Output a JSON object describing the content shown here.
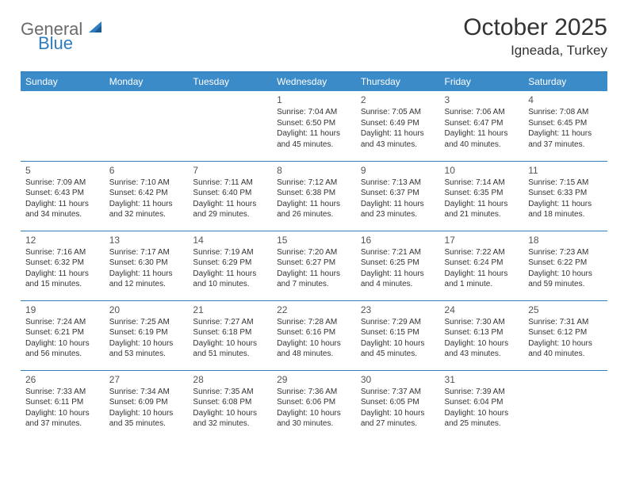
{
  "brand": {
    "name1": "General",
    "name2": "Blue"
  },
  "title": "October 2025",
  "location": "Igneada, Turkey",
  "colors": {
    "header_bg": "#3b8bc9",
    "header_text": "#ffffff",
    "rule": "#2f7bbf",
    "text": "#333333",
    "logo_gray": "#6b6b6b",
    "logo_blue": "#2f7bbf",
    "bg": "#ffffff"
  },
  "weekdays": [
    "Sunday",
    "Monday",
    "Tuesday",
    "Wednesday",
    "Thursday",
    "Friday",
    "Saturday"
  ],
  "weeks": [
    [
      null,
      null,
      null,
      {
        "n": "1",
        "sr": "7:04 AM",
        "ss": "6:50 PM",
        "dl": "11 hours and 45 minutes."
      },
      {
        "n": "2",
        "sr": "7:05 AM",
        "ss": "6:49 PM",
        "dl": "11 hours and 43 minutes."
      },
      {
        "n": "3",
        "sr": "7:06 AM",
        "ss": "6:47 PM",
        "dl": "11 hours and 40 minutes."
      },
      {
        "n": "4",
        "sr": "7:08 AM",
        "ss": "6:45 PM",
        "dl": "11 hours and 37 minutes."
      }
    ],
    [
      {
        "n": "5",
        "sr": "7:09 AM",
        "ss": "6:43 PM",
        "dl": "11 hours and 34 minutes."
      },
      {
        "n": "6",
        "sr": "7:10 AM",
        "ss": "6:42 PM",
        "dl": "11 hours and 32 minutes."
      },
      {
        "n": "7",
        "sr": "7:11 AM",
        "ss": "6:40 PM",
        "dl": "11 hours and 29 minutes."
      },
      {
        "n": "8",
        "sr": "7:12 AM",
        "ss": "6:38 PM",
        "dl": "11 hours and 26 minutes."
      },
      {
        "n": "9",
        "sr": "7:13 AM",
        "ss": "6:37 PM",
        "dl": "11 hours and 23 minutes."
      },
      {
        "n": "10",
        "sr": "7:14 AM",
        "ss": "6:35 PM",
        "dl": "11 hours and 21 minutes."
      },
      {
        "n": "11",
        "sr": "7:15 AM",
        "ss": "6:33 PM",
        "dl": "11 hours and 18 minutes."
      }
    ],
    [
      {
        "n": "12",
        "sr": "7:16 AM",
        "ss": "6:32 PM",
        "dl": "11 hours and 15 minutes."
      },
      {
        "n": "13",
        "sr": "7:17 AM",
        "ss": "6:30 PM",
        "dl": "11 hours and 12 minutes."
      },
      {
        "n": "14",
        "sr": "7:19 AM",
        "ss": "6:29 PM",
        "dl": "11 hours and 10 minutes."
      },
      {
        "n": "15",
        "sr": "7:20 AM",
        "ss": "6:27 PM",
        "dl": "11 hours and 7 minutes."
      },
      {
        "n": "16",
        "sr": "7:21 AM",
        "ss": "6:25 PM",
        "dl": "11 hours and 4 minutes."
      },
      {
        "n": "17",
        "sr": "7:22 AM",
        "ss": "6:24 PM",
        "dl": "11 hours and 1 minute."
      },
      {
        "n": "18",
        "sr": "7:23 AM",
        "ss": "6:22 PM",
        "dl": "10 hours and 59 minutes."
      }
    ],
    [
      {
        "n": "19",
        "sr": "7:24 AM",
        "ss": "6:21 PM",
        "dl": "10 hours and 56 minutes."
      },
      {
        "n": "20",
        "sr": "7:25 AM",
        "ss": "6:19 PM",
        "dl": "10 hours and 53 minutes."
      },
      {
        "n": "21",
        "sr": "7:27 AM",
        "ss": "6:18 PM",
        "dl": "10 hours and 51 minutes."
      },
      {
        "n": "22",
        "sr": "7:28 AM",
        "ss": "6:16 PM",
        "dl": "10 hours and 48 minutes."
      },
      {
        "n": "23",
        "sr": "7:29 AM",
        "ss": "6:15 PM",
        "dl": "10 hours and 45 minutes."
      },
      {
        "n": "24",
        "sr": "7:30 AM",
        "ss": "6:13 PM",
        "dl": "10 hours and 43 minutes."
      },
      {
        "n": "25",
        "sr": "7:31 AM",
        "ss": "6:12 PM",
        "dl": "10 hours and 40 minutes."
      }
    ],
    [
      {
        "n": "26",
        "sr": "7:33 AM",
        "ss": "6:11 PM",
        "dl": "10 hours and 37 minutes."
      },
      {
        "n": "27",
        "sr": "7:34 AM",
        "ss": "6:09 PM",
        "dl": "10 hours and 35 minutes."
      },
      {
        "n": "28",
        "sr": "7:35 AM",
        "ss": "6:08 PM",
        "dl": "10 hours and 32 minutes."
      },
      {
        "n": "29",
        "sr": "7:36 AM",
        "ss": "6:06 PM",
        "dl": "10 hours and 30 minutes."
      },
      {
        "n": "30",
        "sr": "7:37 AM",
        "ss": "6:05 PM",
        "dl": "10 hours and 27 minutes."
      },
      {
        "n": "31",
        "sr": "7:39 AM",
        "ss": "6:04 PM",
        "dl": "10 hours and 25 minutes."
      },
      null
    ]
  ],
  "labels": {
    "sunrise": "Sunrise:",
    "sunset": "Sunset:",
    "daylight": "Daylight:"
  }
}
